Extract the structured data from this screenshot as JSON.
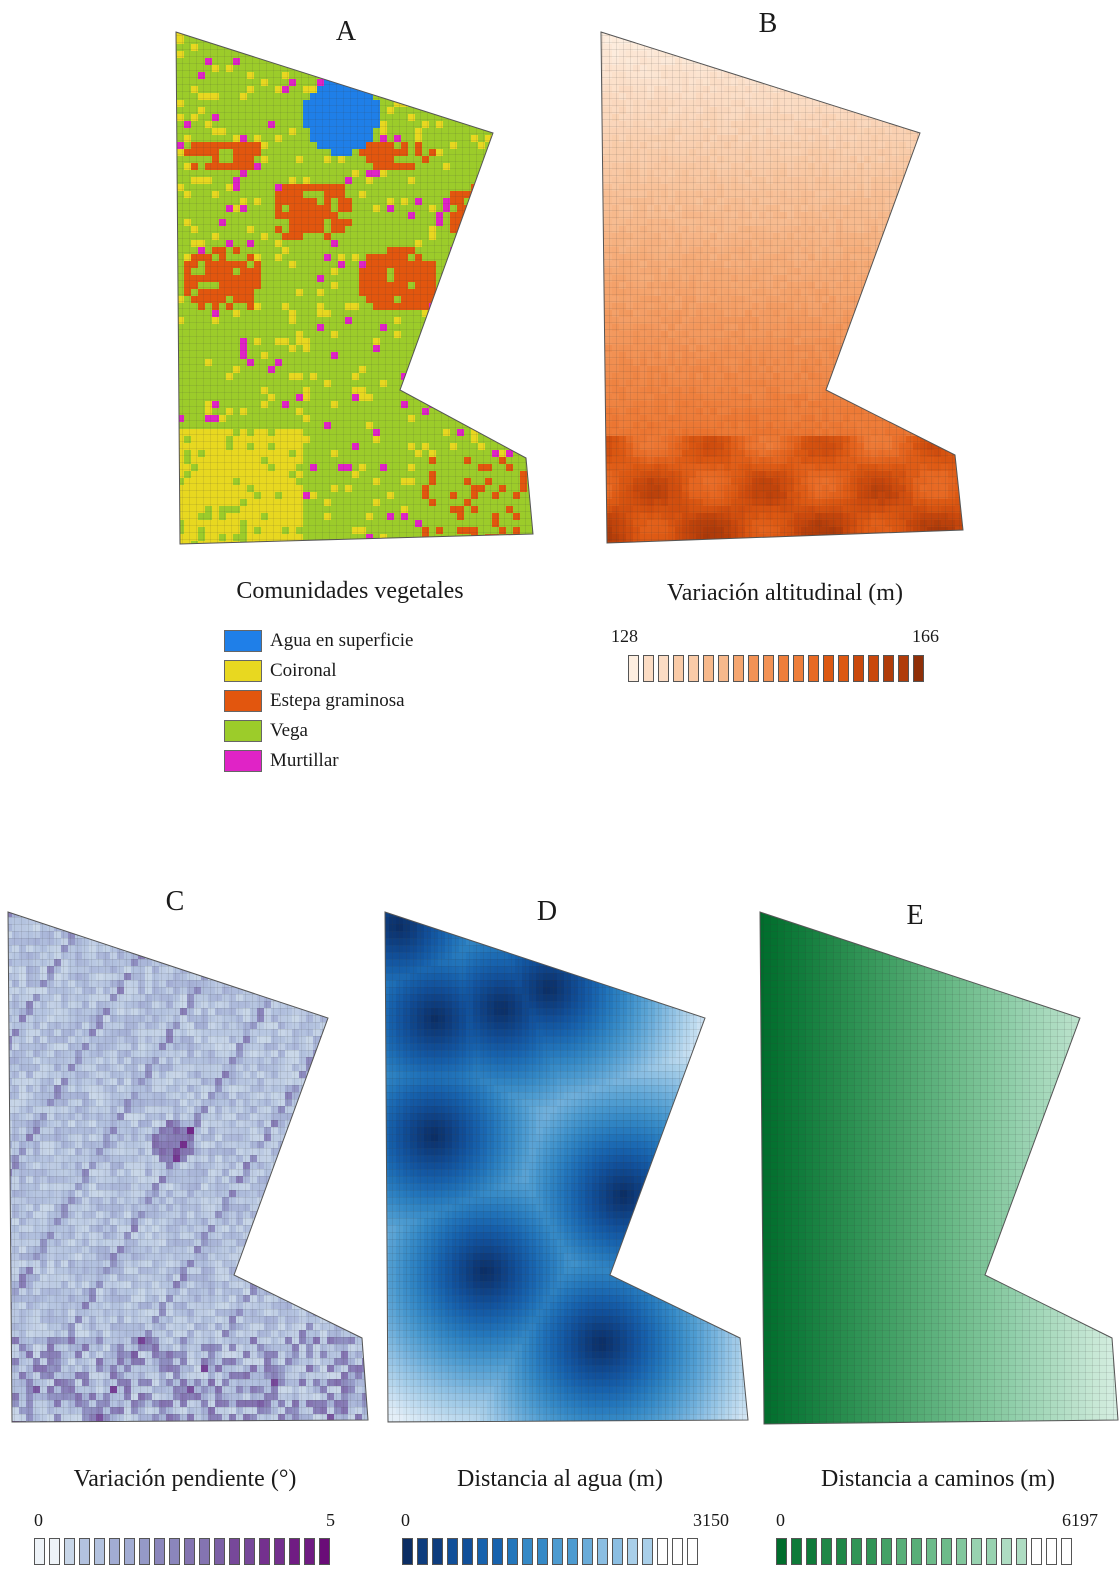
{
  "panels": {
    "a": {
      "letter": "A",
      "legend_title": "Comunidades vegetales",
      "categories": [
        {
          "label": "Agua en superficie",
          "color": "#1f7fe8"
        },
        {
          "label": "Coironal",
          "color": "#e8d820"
        },
        {
          "label": "Estepa graminosa",
          "color": "#e2560e"
        },
        {
          "label": "Vega",
          "color": "#9ccc2a"
        },
        {
          "label": "Murtillar",
          "color": "#e023c6"
        }
      ]
    },
    "b": {
      "letter": "B",
      "legend_title": "Variación altitudinal (m)",
      "min_label": "128",
      "max_label": "166",
      "ramp_colors": [
        "#fdeee0",
        "#fbdcc4",
        "#f9cba8",
        "#f7b98c",
        "#f5a670",
        "#f29255",
        "#ee7e3b",
        "#e86a24",
        "#dc5812",
        "#c9480c",
        "#b03c0a",
        "#8f2f08"
      ]
    },
    "c": {
      "letter": "C",
      "legend_title": "Variación pendiente (°)",
      "min_label": "0",
      "max_label": "5",
      "ramp_colors": [
        "#dde7f0",
        "#c8d6e8",
        "#b3c2df",
        "#a2acd3",
        "#9599c7",
        "#8b86bc",
        "#8474b1",
        "#7c60a6",
        "#77489a",
        "#74308e",
        "#701c83",
        "#6a0c78"
      ]
    },
    "d": {
      "letter": "D",
      "legend_title": "Distancia al agua (m)",
      "min_label": "0",
      "max_label": "3150",
      "ramp_colors": [
        "#0b2d63",
        "#0e3d7e",
        "#114f99",
        "#1762ad",
        "#2376bb",
        "#3589c6",
        "#4d9bd0",
        "#6aacd9",
        "#8bbee2",
        "#a9cfe9",
        "#c7dff1",
        "#e4eff8"
      ]
    },
    "e": {
      "letter": "E",
      "legend_title": "Distancia a caminos (m)",
      "min_label": "0",
      "max_label": "6197",
      "ramp_colors": [
        "#006d2c",
        "#0e7a39",
        "#1f8747",
        "#319456",
        "#44a166",
        "#58ae78",
        "#6dbb8a",
        "#82c79d",
        "#98d2b0",
        "#aedcc2",
        "#c4e6d3",
        "#daf0e5"
      ]
    }
  }
}
